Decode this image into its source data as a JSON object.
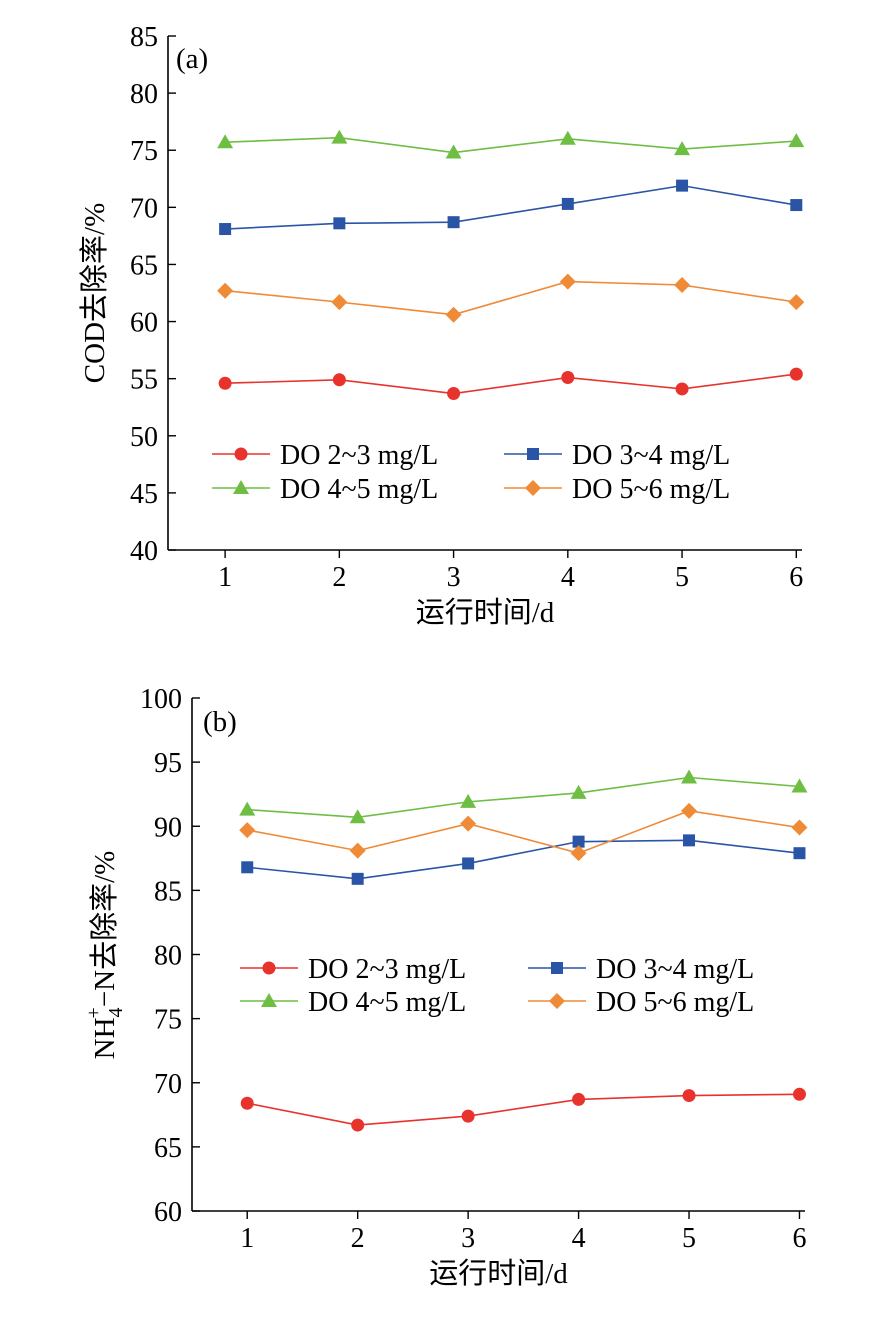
{
  "colors": {
    "DO 2~3 mg/L": "#e8332d",
    "DO 3~4 mg/L": "#2a55a6",
    "DO 4~5 mg/L": "#6fbe44",
    "DO 5~6 mg/L": "#ef8a37"
  },
  "markers": {
    "DO 2~3 mg/L": "circle",
    "DO 3~4 mg/L": "square",
    "DO 4~5 mg/L": "triangle",
    "DO 5~6 mg/L": "diamond"
  },
  "chart_data": [
    {
      "type": "line",
      "panel_label": "(a)",
      "xlabel": "运行时间/d",
      "ylabel": "COD去除率/%",
      "x": [
        1,
        2,
        3,
        4,
        5,
        6
      ],
      "xlim": [
        0.5,
        6.05
      ],
      "ylim": [
        40,
        85
      ],
      "yticks": [
        40,
        45,
        50,
        55,
        60,
        65,
        70,
        75,
        80,
        85
      ],
      "legend": "lower-center, 2 columns",
      "grid": false,
      "series": [
        {
          "name": "DO 2~3 mg/L",
          "values": [
            54.6,
            54.9,
            53.7,
            55.1,
            54.1,
            55.4
          ]
        },
        {
          "name": "DO 3~4 mg/L",
          "values": [
            68.1,
            68.6,
            68.7,
            70.3,
            71.9,
            70.2
          ]
        },
        {
          "name": "DO 4~5 mg/L",
          "values": [
            75.7,
            76.1,
            74.8,
            76.0,
            75.1,
            75.8
          ]
        },
        {
          "name": "DO 5~6 mg/L",
          "values": [
            62.7,
            61.7,
            60.6,
            63.5,
            63.2,
            61.7
          ]
        }
      ]
    },
    {
      "type": "line",
      "panel_label": "(b)",
      "xlabel": "运行时间/d",
      "ylabel_parts": [
        "NH",
        "4",
        "+",
        "−N去除率/%"
      ],
      "x": [
        1,
        2,
        3,
        4,
        5,
        6
      ],
      "xlim": [
        0.5,
        6.05
      ],
      "ylim": [
        60,
        100
      ],
      "yticks": [
        60,
        65,
        70,
        75,
        80,
        85,
        90,
        95,
        100
      ],
      "legend": "center, 2 columns",
      "grid": false,
      "series": [
        {
          "name": "DO 2~3 mg/L",
          "values": [
            68.4,
            66.7,
            67.4,
            68.7,
            69.0,
            69.1
          ]
        },
        {
          "name": "DO 3~4 mg/L",
          "values": [
            86.8,
            85.9,
            87.1,
            88.8,
            88.9,
            87.9
          ]
        },
        {
          "name": "DO 4~5 mg/L",
          "values": [
            91.3,
            90.7,
            91.9,
            92.6,
            93.8,
            93.1
          ]
        },
        {
          "name": "DO 5~6 mg/L",
          "values": [
            89.7,
            88.1,
            90.2,
            87.9,
            91.2,
            89.9
          ]
        }
      ]
    }
  ]
}
